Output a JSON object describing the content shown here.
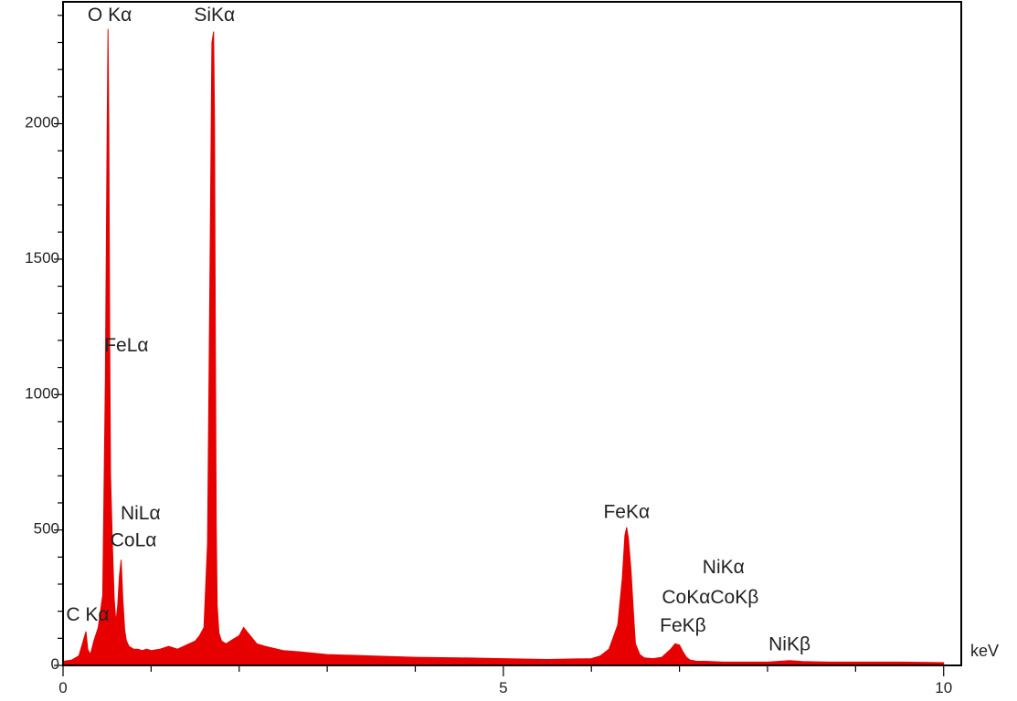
{
  "chart_data": {
    "type": "area",
    "xlabel": "keV",
    "ylabel": "",
    "title": "",
    "xlim": [
      0,
      10.2
    ],
    "ylim": [
      0,
      2450
    ],
    "x_ticks": [
      0,
      5,
      10
    ],
    "x_tick_labels": [
      "0",
      "5",
      "10"
    ],
    "y_ticks": [
      0,
      500,
      1000,
      1500,
      2000
    ],
    "y_tick_labels": [
      "0",
      "500",
      "1000",
      "1500",
      "2000"
    ],
    "x_minor_step": 1,
    "y_minor_step": 100,
    "grid": false,
    "fill_color": "#e60000",
    "series": [
      {
        "x": [
          0.0,
          0.1,
          0.18,
          0.22,
          0.26,
          0.28,
          0.31,
          0.35,
          0.4,
          0.45,
          0.48,
          0.5,
          0.51,
          0.52,
          0.53,
          0.54,
          0.56,
          0.58,
          0.6,
          0.62,
          0.64,
          0.66,
          0.68,
          0.7,
          0.72,
          0.75,
          0.8,
          0.85,
          0.9,
          0.95,
          1.0,
          1.1,
          1.2,
          1.3,
          1.4,
          1.5,
          1.55,
          1.6,
          1.64,
          1.67,
          1.69,
          1.71,
          1.72,
          1.73,
          1.74,
          1.75,
          1.77,
          1.8,
          1.85,
          1.9,
          2.0,
          2.05,
          2.1,
          2.15,
          2.2,
          2.3,
          2.5,
          2.7,
          3.0,
          3.5,
          4.0,
          4.5,
          5.0,
          5.5,
          6.0,
          6.1,
          6.2,
          6.3,
          6.35,
          6.38,
          6.4,
          6.42,
          6.45,
          6.48,
          6.5,
          6.55,
          6.6,
          6.7,
          6.8,
          6.9,
          6.95,
          7.0,
          7.04,
          7.08,
          7.12,
          7.2,
          7.3,
          7.5,
          7.8,
          8.0,
          8.25,
          8.4,
          8.7,
          9.0,
          9.5,
          10.0
        ],
        "y": [
          15,
          20,
          35,
          80,
          125,
          60,
          40,
          90,
          140,
          260,
          1050,
          1950,
          2350,
          2000,
          1200,
          700,
          450,
          250,
          160,
          220,
          330,
          390,
          240,
          130,
          90,
          70,
          60,
          60,
          55,
          60,
          55,
          60,
          70,
          60,
          75,
          90,
          110,
          140,
          450,
          1500,
          2300,
          2340,
          2000,
          1200,
          500,
          220,
          120,
          90,
          80,
          90,
          110,
          140,
          120,
          100,
          80,
          70,
          55,
          50,
          40,
          35,
          30,
          28,
          25,
          22,
          25,
          35,
          60,
          150,
          320,
          480,
          510,
          470,
          350,
          180,
          80,
          40,
          28,
          25,
          30,
          60,
          80,
          75,
          50,
          30,
          20,
          15,
          15,
          12,
          12,
          12,
          18,
          14,
          12,
          12,
          12,
          10
        ]
      }
    ],
    "annotations": [
      {
        "text": "O Kα",
        "x": 0.53,
        "y": 2380
      },
      {
        "text": "SiKα",
        "x": 1.72,
        "y": 2380
      },
      {
        "text": "FeLα",
        "x": 0.72,
        "y": 1160
      },
      {
        "text": "NiLα",
        "x": 0.88,
        "y": 540
      },
      {
        "text": "CoLα",
        "x": 0.8,
        "y": 440
      },
      {
        "text": "C Kα",
        "x": 0.28,
        "y": 165
      },
      {
        "text": "FeKα",
        "x": 6.4,
        "y": 545
      },
      {
        "text": "NiKα",
        "x": 7.5,
        "y": 340
      },
      {
        "text": "CoKαCoKβ",
        "x": 7.35,
        "y": 230
      },
      {
        "text": "FeKβ",
        "x": 7.04,
        "y": 125
      },
      {
        "text": "NiKβ",
        "x": 8.25,
        "y": 55
      }
    ]
  }
}
